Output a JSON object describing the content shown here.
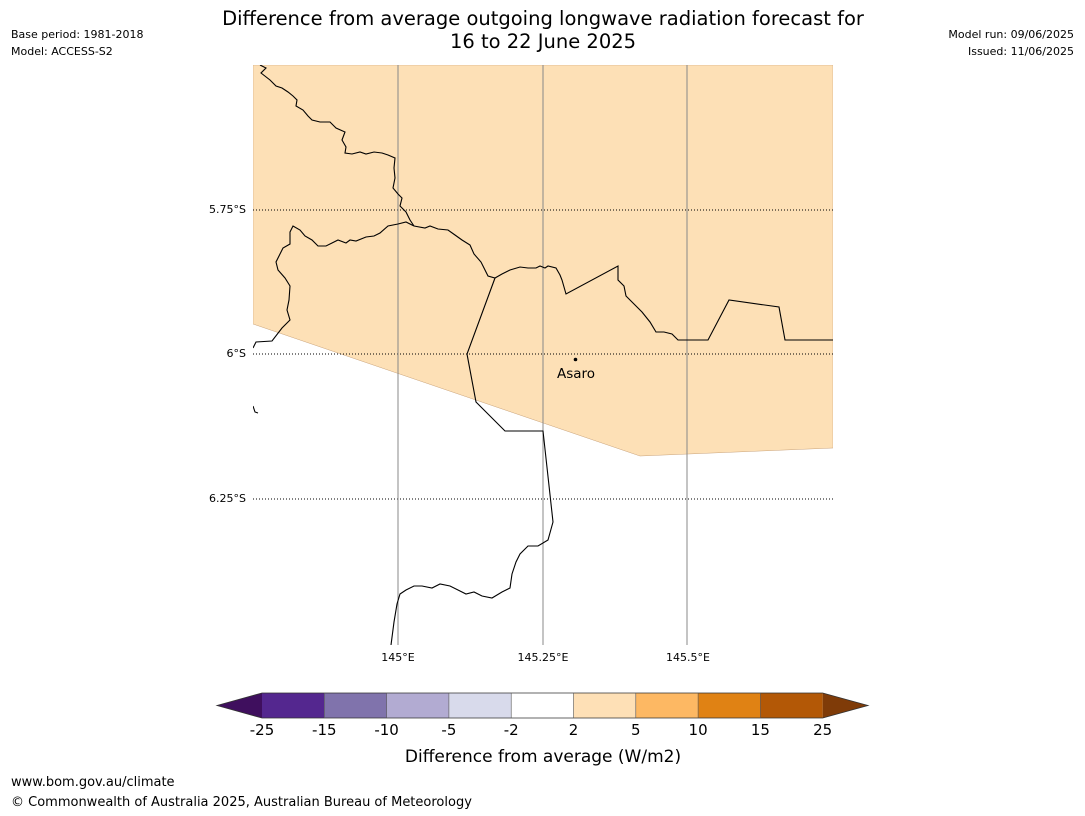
{
  "title_line1": "Difference from average outgoing longwave radiation forecast for",
  "title_line2": "16 to 22 June 2025",
  "base_period": "Base period: 1981-2018",
  "model": "Model: ACCESS-S2",
  "model_run": "Model run: 09/06/2025",
  "issued": "Issued: 11/06/2025",
  "place": "Asaro",
  "lat_labels": [
    "5.75°S",
    "6°S",
    "6.25°S"
  ],
  "lon_labels": [
    "145°E",
    "145.25°E",
    "145.5°E"
  ],
  "colorbar": {
    "label": "Difference from average (W/m2)",
    "ticks": [
      "-25",
      "-15",
      "-10",
      "-5",
      "-2",
      "2",
      "5",
      "10",
      "15",
      "25"
    ],
    "colors": [
      "#3f0f5e",
      "#54278f",
      "#8073ac",
      "#b2abd2",
      "#d8daeb",
      "#ffffff",
      "#fee0b6",
      "#fdb863",
      "#e08214",
      "#b35806",
      "#7f3b08"
    ]
  },
  "map": {
    "fill_category": "2 to 5",
    "fill_color": "#fde0b6"
  },
  "footer_url": "www.bom.gov.au/climate",
  "footer_copyright": "© Commonwealth of Australia 2025, Australian Bureau of Meteorology"
}
